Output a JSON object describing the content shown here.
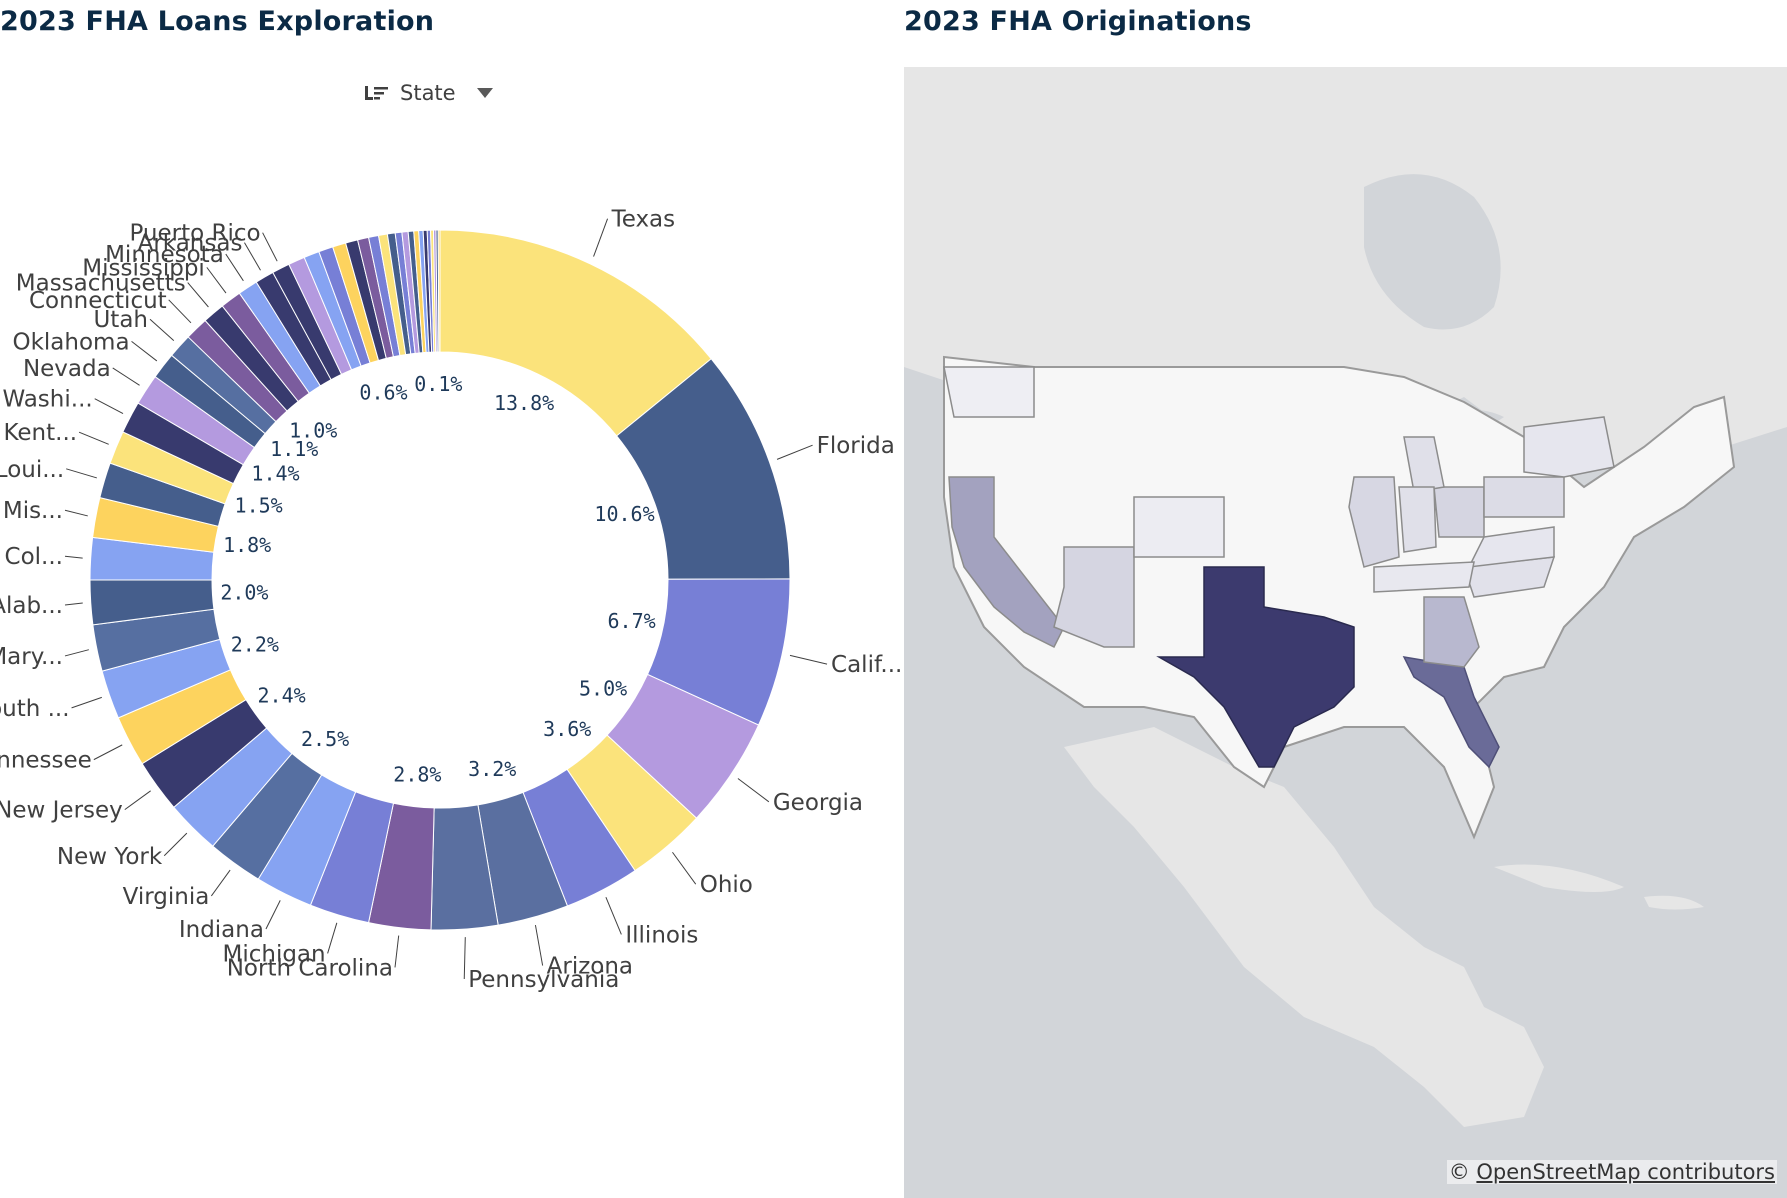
{
  "left_panel": {
    "title": "2023 FHA Loans Exploration",
    "dimension_selector": {
      "label": "State",
      "icon": "list-sort-icon",
      "dropdown_icon": "caret-down-icon"
    }
  },
  "right_panel": {
    "title": "2023 FHA Originations",
    "attribution": {
      "symbol": "©",
      "link_text": "OpenStreetMap contributors"
    }
  },
  "chart_data": [
    {
      "type": "pie",
      "subtype": "donut",
      "title": "2023 FHA Loans Exploration",
      "dimension": "State",
      "labels_visible": true,
      "slices": [
        {
          "label": "Texas",
          "value": 13.8,
          "pct_label": "13.8%",
          "color": "#fbe37b"
        },
        {
          "label": "Florida",
          "value": 10.6,
          "pct_label": "10.6%",
          "color": "#455e8c"
        },
        {
          "label": "Calif...",
          "value": 6.7,
          "pct_label": "6.7%",
          "color": "#777fd6"
        },
        {
          "label": "Georgia",
          "value": 5.0,
          "pct_label": "5.0%",
          "color": "#b49adf"
        },
        {
          "label": "Ohio",
          "value": 3.6,
          "pct_label": "3.6%",
          "color": "#fbe37b"
        },
        {
          "label": "Illinois",
          "value": 3.4,
          "pct_label": "",
          "color": "#777fd6"
        },
        {
          "label": "Arizona",
          "value": 3.2,
          "pct_label": "3.2%",
          "color": "#5a6fa0"
        },
        {
          "label": "Pennsylvania",
          "value": 3.0,
          "pct_label": "",
          "color": "#5a6fa0"
        },
        {
          "label": "North Carolina",
          "value": 2.8,
          "pct_label": "2.8%",
          "color": "#7b5c9e"
        },
        {
          "label": "Michigan",
          "value": 2.7,
          "pct_label": "",
          "color": "#777fd6"
        },
        {
          "label": "Indiana",
          "value": 2.6,
          "pct_label": "",
          "color": "#86a3f2"
        },
        {
          "label": "Virginia",
          "value": 2.5,
          "pct_label": "2.5%",
          "color": "#566fa1"
        },
        {
          "label": "New York",
          "value": 2.45,
          "pct_label": "",
          "color": "#86a3f2"
        },
        {
          "label": "New Jersey",
          "value": 2.4,
          "pct_label": "2.4%",
          "color": "#383a6e"
        },
        {
          "label": "Tennessee",
          "value": 2.3,
          "pct_label": "",
          "color": "#fdd35e"
        },
        {
          "label": "South ...",
          "value": 2.2,
          "pct_label": "2.2%",
          "color": "#86a3f2"
        },
        {
          "label": "Mary...",
          "value": 2.1,
          "pct_label": "",
          "color": "#566fa1"
        },
        {
          "label": "Alab...",
          "value": 2.0,
          "pct_label": "2.0%",
          "color": "#455e8c"
        },
        {
          "label": "Col...",
          "value": 1.9,
          "pct_label": "",
          "color": "#86a3f2"
        },
        {
          "label": "Mis...",
          "value": 1.8,
          "pct_label": "1.8%",
          "color": "#fdd35e"
        },
        {
          "label": "Loui...",
          "value": 1.6,
          "pct_label": "",
          "color": "#455e8c"
        },
        {
          "label": "Kent...",
          "value": 1.5,
          "pct_label": "1.5%",
          "color": "#fbe37b"
        },
        {
          "label": "Washi...",
          "value": 1.45,
          "pct_label": "",
          "color": "#383a6e"
        },
        {
          "label": "Nevada",
          "value": 1.4,
          "pct_label": "1.4%",
          "color": "#b49adf"
        },
        {
          "label": "Oklahoma",
          "value": 1.2,
          "pct_label": "",
          "color": "#455e8c"
        },
        {
          "label": "Utah",
          "value": 1.1,
          "pct_label": "1.1%",
          "color": "#566fa1"
        },
        {
          "label": "Connecticut",
          "value": 1.05,
          "pct_label": "",
          "color": "#7b5c9e"
        },
        {
          "label": "Massachusetts",
          "value": 1.0,
          "pct_label": "1.0%",
          "color": "#383a6e"
        },
        {
          "label": "Mississippi",
          "value": 0.95,
          "pct_label": "",
          "color": "#7b5c9e"
        },
        {
          "label": "Minnesota",
          "value": 0.9,
          "pct_label": "",
          "color": "#86a3f2"
        },
        {
          "label": "Arkansas",
          "value": 0.85,
          "pct_label": "",
          "color": "#383a6e"
        },
        {
          "label": "Puerto Rico",
          "value": 0.8,
          "pct_label": "",
          "color": "#383a6e"
        },
        {
          "label": "",
          "value": 0.75,
          "pct_label": "",
          "color": "#b49adf"
        },
        {
          "label": "",
          "value": 0.7,
          "pct_label": "",
          "color": "#86a3f2"
        },
        {
          "label": "",
          "value": 0.65,
          "pct_label": "",
          "color": "#777fd6"
        },
        {
          "label": "",
          "value": 0.6,
          "pct_label": "0.6%",
          "color": "#fdd35e"
        },
        {
          "label": "",
          "value": 0.55,
          "pct_label": "",
          "color": "#383a6e"
        },
        {
          "label": "",
          "value": 0.5,
          "pct_label": "",
          "color": "#7b5c9e"
        },
        {
          "label": "",
          "value": 0.45,
          "pct_label": "",
          "color": "#777fd6"
        },
        {
          "label": "",
          "value": 0.4,
          "pct_label": "",
          "color": "#fbe37b"
        },
        {
          "label": "",
          "value": 0.35,
          "pct_label": "",
          "color": "#455e8c"
        },
        {
          "label": "",
          "value": 0.3,
          "pct_label": "",
          "color": "#777fd6"
        },
        {
          "label": "",
          "value": 0.28,
          "pct_label": "",
          "color": "#b49adf"
        },
        {
          "label": "",
          "value": 0.25,
          "pct_label": "",
          "color": "#455e8c"
        },
        {
          "label": "",
          "value": 0.22,
          "pct_label": "",
          "color": "#fdd35e"
        },
        {
          "label": "",
          "value": 0.2,
          "pct_label": "",
          "color": "#86a3f2"
        },
        {
          "label": "",
          "value": 0.18,
          "pct_label": "",
          "color": "#383a6e"
        },
        {
          "label": "",
          "value": 0.15,
          "pct_label": "",
          "color": "#777fd6"
        },
        {
          "label": "",
          "value": 0.13,
          "pct_label": "",
          "color": "#fbe37b"
        },
        {
          "label": "",
          "value": 0.11,
          "pct_label": "",
          "color": "#b49adf"
        },
        {
          "label": "",
          "value": 0.1,
          "pct_label": "0.1%",
          "color": "#455e8c"
        },
        {
          "label": "",
          "value": 0.08,
          "pct_label": "",
          "color": "#fdd35e"
        }
      ]
    },
    {
      "type": "map",
      "subtype": "choropleth",
      "title": "2023 FHA Originations",
      "legend": "none",
      "fill_colors": {
        "ocean": "#d2d5d9",
        "land": "#eaeaea",
        "lakes": "#d2d5d9",
        "border": "#9a9a9a"
      },
      "regions": [
        {
          "name": "Texas",
          "value": 13.8,
          "color": "#3c3a6e"
        },
        {
          "name": "Florida",
          "value": 10.6,
          "color": "#6a6b98"
        },
        {
          "name": "California",
          "value": 6.7,
          "color": "#a3a2bf"
        },
        {
          "name": "Georgia",
          "value": 5.0,
          "color": "#b8b8cf"
        },
        {
          "name": "Arizona",
          "value": 3.2,
          "color": "#d5d5e1"
        },
        {
          "name": "Ohio",
          "value": 3.6,
          "color": "#d5d5e1"
        },
        {
          "name": "Pennsylvania",
          "value": 3.0,
          "color": "#dcdce6"
        },
        {
          "name": "Illinois",
          "value": 3.4,
          "color": "#d7d7e3"
        },
        {
          "name": "Michigan",
          "value": 2.7,
          "color": "#e0e0e9"
        },
        {
          "name": "Indiana",
          "value": 2.6,
          "color": "#e0e0e9"
        },
        {
          "name": "North Carolina",
          "value": 2.8,
          "color": "#e1e1ea"
        },
        {
          "name": "Virginia",
          "value": 2.5,
          "color": "#e6e6ee"
        },
        {
          "name": "New York",
          "value": 2.45,
          "color": "#e6e6ee"
        },
        {
          "name": "Tennessee",
          "value": 2.3,
          "color": "#e8e8ef"
        },
        {
          "name": "Colorado",
          "value": 1.9,
          "color": "#ececf2"
        },
        {
          "name": "Washington",
          "value": 1.45,
          "color": "#eeeef3"
        }
      ]
    }
  ]
}
